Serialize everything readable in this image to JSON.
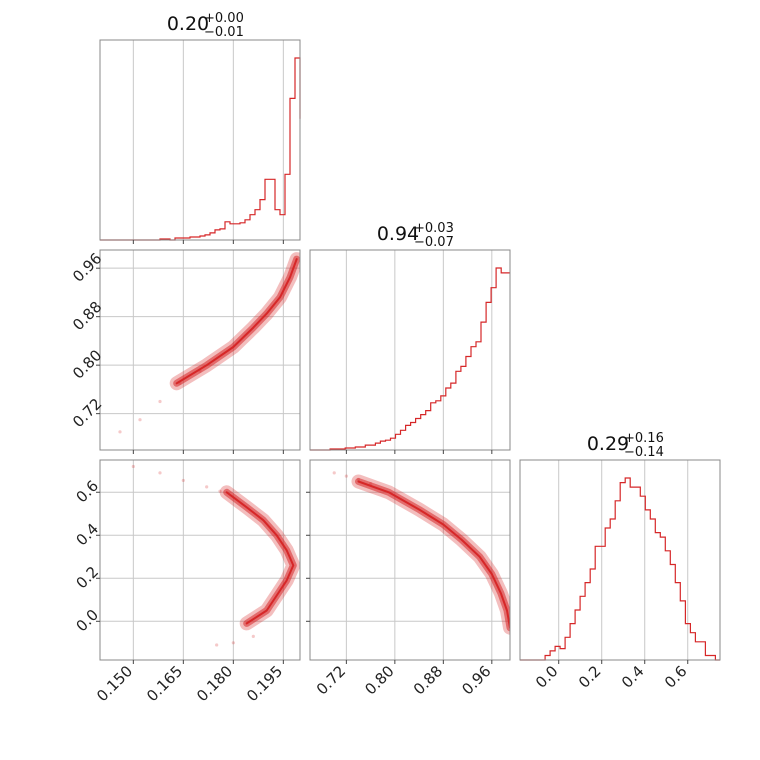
{
  "chart_data": {
    "type": "corner",
    "color": "#d62728",
    "grid": true,
    "params": [
      {
        "range": [
          0.14,
          0.2
        ],
        "ticks": [
          0.15,
          0.165,
          0.18,
          0.195
        ],
        "tick_labels": [
          "0.150",
          "0.165",
          "0.180",
          "0.195"
        ],
        "title_value": "0.20",
        "title_plus": "+0.00",
        "title_minus": "−0.01",
        "hist": {
          "edges_start": 0.14,
          "edges_step": 0.0015,
          "counts": [
            0,
            0,
            0,
            0,
            0,
            0,
            0,
            0,
            0,
            0,
            0,
            0,
            1,
            1,
            0,
            2,
            2,
            2,
            3,
            3,
            4,
            5,
            7,
            10,
            11,
            18,
            16,
            16,
            17,
            20,
            25,
            30,
            40,
            60,
            60,
            30,
            25,
            65,
            140,
            180,
            120
          ]
        }
      },
      {
        "range": [
          0.66,
          0.99
        ],
        "ticks": [
          0.72,
          0.8,
          0.88,
          0.96
        ],
        "tick_labels": [
          "0.72",
          "0.80",
          "0.88",
          "0.96"
        ],
        "title_value": "0.94",
        "title_plus": "+0.03",
        "title_minus": "−0.07",
        "hist": {
          "edges_start": 0.66,
          "edges_step": 0.0083,
          "counts": [
            0,
            0,
            0,
            0,
            1,
            1,
            1,
            2,
            2,
            3,
            3,
            5,
            5,
            7,
            9,
            10,
            12,
            16,
            20,
            25,
            28,
            32,
            36,
            40,
            48,
            50,
            55,
            63,
            68,
            80,
            85,
            95,
            105,
            110,
            130,
            150,
            165,
            185,
            180,
            180
          ]
        }
      },
      {
        "range": [
          -0.18,
          0.75
        ],
        "ticks": [
          0.0,
          0.2,
          0.4,
          0.6
        ],
        "tick_labels": [
          "0.0",
          "0.2",
          "0.4",
          "0.6"
        ],
        "title_value": "0.29",
        "title_plus": "+0.16",
        "title_minus": "−0.14",
        "hist": {
          "edges_start": -0.18,
          "edges_step": 0.0233,
          "counts": [
            0,
            0,
            0,
            0,
            0,
            2,
            4,
            6,
            5,
            10,
            16,
            22,
            28,
            34,
            40,
            50,
            50,
            58,
            62,
            70,
            78,
            80,
            76,
            76,
            72,
            66,
            62,
            56,
            54,
            48,
            42,
            34,
            26,
            16,
            12,
            8,
            8,
            2,
            2,
            0
          ]
        }
      }
    ]
  }
}
